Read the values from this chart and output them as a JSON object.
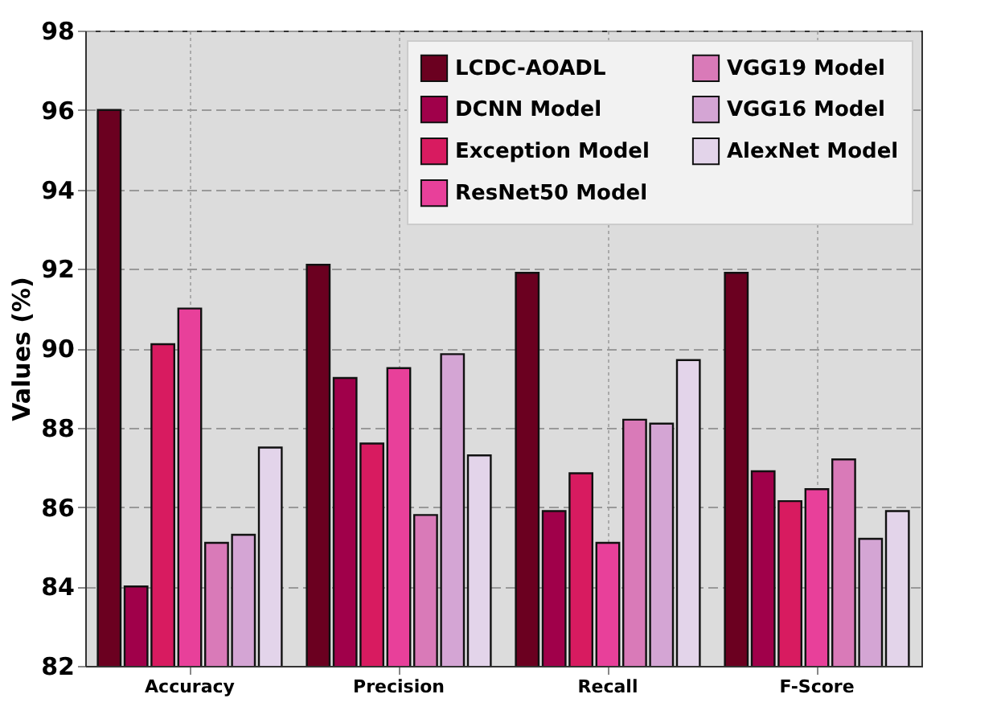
{
  "chart_data": {
    "type": "bar",
    "ylabel": "Values (%)",
    "categories": [
      "Accuracy",
      "Precision",
      "Recall",
      "F-Score"
    ],
    "series": [
      {
        "name": "LCDC-AOADL",
        "color": "#6b0020",
        "values": [
          96.0,
          92.1,
          91.9,
          91.9
        ]
      },
      {
        "name": "DCNN Model",
        "color": "#a0004a",
        "values": [
          84.0,
          89.25,
          85.9,
          86.9
        ]
      },
      {
        "name": "Exception Model",
        "color": "#d81b60",
        "values": [
          90.1,
          87.6,
          86.85,
          86.15
        ]
      },
      {
        "name": "ResNet50 Model",
        "color": "#e8409a",
        "values": [
          91.0,
          89.5,
          85.1,
          86.45
        ]
      },
      {
        "name": "VGG19 Model",
        "color": "#d97ab8",
        "values": [
          85.1,
          85.8,
          88.2,
          87.2
        ]
      },
      {
        "name": "VGG16 Model",
        "color": "#d4a5d4",
        "values": [
          85.3,
          89.85,
          88.1,
          85.2
        ]
      },
      {
        "name": "AlexNet Model",
        "color": "#e3d4ea",
        "values": [
          87.5,
          87.3,
          89.7,
          85.9
        ]
      }
    ],
    "ylim": [
      82,
      98
    ],
    "yticks": [
      82,
      84,
      86,
      88,
      90,
      92,
      94,
      96,
      98
    ],
    "grid": true,
    "legend": "top right"
  }
}
